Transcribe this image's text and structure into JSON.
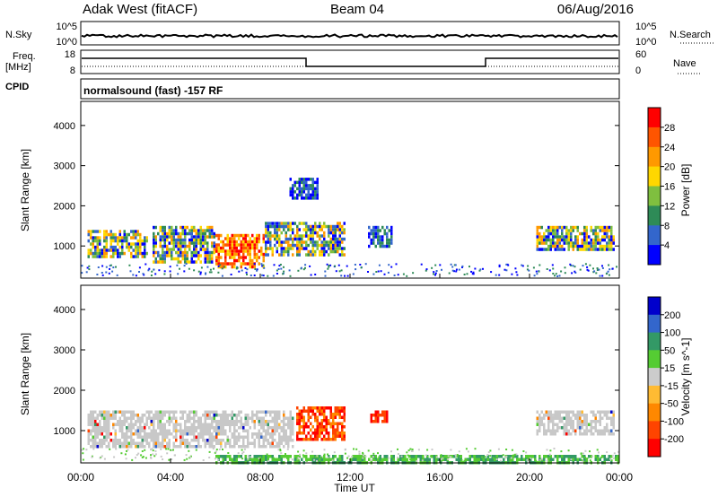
{
  "header": {
    "station": "Adak West (fitACF)",
    "beam": "Beam 04",
    "date": "06/Aug/2016"
  },
  "top_panels": {
    "nsky_label": "N.Sky",
    "nsearch_label": "N.Search",
    "nsky_ticks": [
      "10^5",
      "10^0"
    ],
    "freq_label": "Freq.",
    "freq_unit": "[MHz]",
    "freq_ticks": [
      "18",
      "8"
    ],
    "nave_label": "Nave",
    "nave_ticks": [
      "60",
      "0"
    ],
    "cpid_label": "CPID",
    "cpid_text": "normalsound (fast) -157 RF"
  },
  "colors": {
    "power_scale": [
      "#0000ff",
      "#3366cc",
      "#2e8b57",
      "#7fbf3f",
      "#ffd700",
      "#ff9900",
      "#ff5500",
      "#ff0000"
    ],
    "velocity_scale": [
      "#ff0000",
      "#ff4400",
      "#ff8800",
      "#ffbb33",
      "#cccccc",
      "#55cc33",
      "#339966",
      "#3366cc",
      "#0000cc"
    ],
    "ground_scatter": "#c8c8c8"
  },
  "chart_data": [
    {
      "type": "heatmap",
      "title": "",
      "ylabel": "Slant Range [km]",
      "xlabel": "",
      "colorbar_label": "Power [dB]",
      "colorbar_ticks": [
        "28",
        "24",
        "20",
        "16",
        "12",
        "8",
        "4"
      ],
      "yticks": [
        "4000",
        "3000",
        "2000",
        "1000"
      ],
      "ylim": [
        200,
        4600
      ],
      "xlim_hours": [
        0,
        24
      ],
      "regions": [
        {
          "t0": 0.3,
          "t1": 3.0,
          "r0": 700,
          "r1": 1400,
          "level": "mid"
        },
        {
          "t0": 3.2,
          "t1": 6.0,
          "r0": 600,
          "r1": 1500,
          "level": "mid"
        },
        {
          "t0": 6.0,
          "t1": 8.2,
          "r0": 500,
          "r1": 1300,
          "level": "high"
        },
        {
          "t0": 8.2,
          "t1": 11.8,
          "r0": 800,
          "r1": 1600,
          "level": "mid"
        },
        {
          "t0": 9.3,
          "t1": 10.6,
          "r0": 2200,
          "r1": 2700,
          "level": "low"
        },
        {
          "t0": 12.8,
          "t1": 13.8,
          "r0": 1000,
          "r1": 1500,
          "level": "low"
        },
        {
          "t0": 20.3,
          "t1": 23.8,
          "r0": 900,
          "r1": 1500,
          "level": "mid"
        }
      ]
    },
    {
      "type": "heatmap",
      "title": "",
      "ylabel": "Slant Range [km]",
      "xlabel": "Time UT",
      "colorbar_label": "Velocity [m s^-1]",
      "colorbar_ticks": [
        "200",
        "100",
        "50",
        "15",
        "-15",
        "-50",
        "-100",
        "-200"
      ],
      "yticks": [
        "4000",
        "3000",
        "2000",
        "1000"
      ],
      "xticks": [
        "00:00",
        "04:00",
        "08:00",
        "12:00",
        "16:00",
        "20:00",
        "00:00"
      ],
      "ylim": [
        200,
        4600
      ],
      "xlim_hours": [
        0,
        24
      ],
      "regions": [
        {
          "t0": 0.3,
          "t1": 9.5,
          "r0": 600,
          "r1": 1500,
          "level": "ground"
        },
        {
          "t0": 9.6,
          "t1": 11.8,
          "r0": 800,
          "r1": 1600,
          "level": "neg"
        },
        {
          "t0": 12.9,
          "t1": 13.7,
          "r0": 1200,
          "r1": 1500,
          "level": "negstrong"
        },
        {
          "t0": 20.3,
          "t1": 23.8,
          "r0": 900,
          "r1": 1500,
          "level": "ground"
        },
        {
          "t0": 6.0,
          "t1": 24.0,
          "r0": 200,
          "r1": 400,
          "level": "pos"
        }
      ]
    }
  ]
}
